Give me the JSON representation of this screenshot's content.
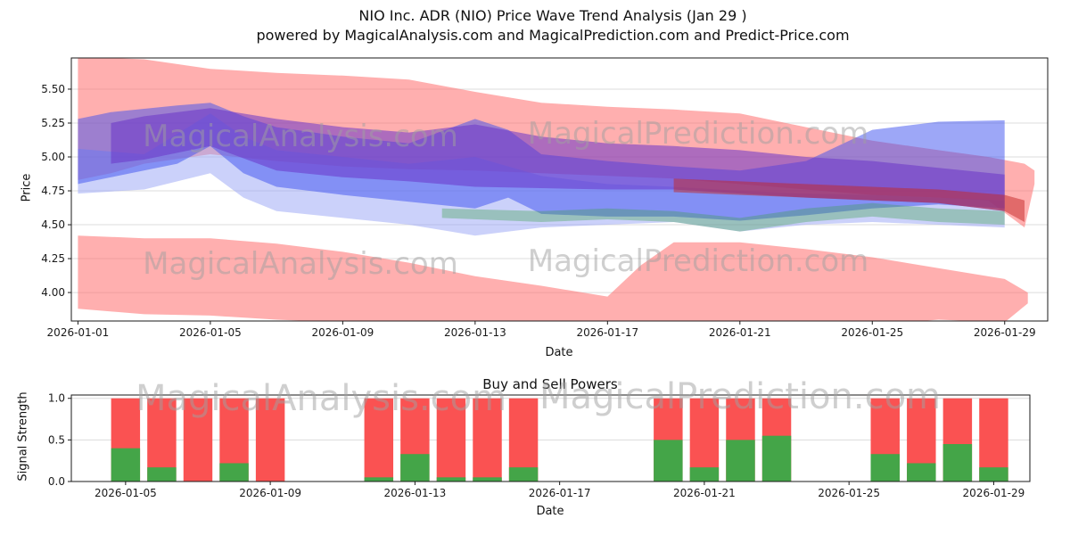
{
  "page": {
    "title_line1": "NIO Inc. ADR (NIO) Price Wave Trend Analysis (Jan 29 )",
    "title_line2": "powered by MagicalAnalysis.com and MagicalPrediction.com and Predict-Price.com"
  },
  "watermarks": {
    "analysis": "MagicalAnalysis.com",
    "prediction": "MagicalPrediction.com"
  },
  "chart_data": [
    {
      "type": "area",
      "title": "NIO Inc. ADR (NIO) Price Wave Trend Analysis (Jan 29 )",
      "xlabel": "Date",
      "ylabel": "Price",
      "xlim": [
        0.8,
        30.3
      ],
      "ylim": [
        3.79,
        5.73
      ],
      "x_tick_days": [
        1,
        5,
        9,
        13,
        17,
        21,
        25,
        29
      ],
      "x_tick_labels": [
        "2026-01-01",
        "2026-01-05",
        "2026-01-09",
        "2026-01-13",
        "2026-01-17",
        "2026-01-21",
        "2026-01-25",
        "2026-01-29"
      ],
      "y_ticks": [
        4.0,
        4.25,
        4.5,
        4.75,
        5.0,
        5.25,
        5.5
      ],
      "y_tick_labels": [
        "4.00",
        "4.25",
        "4.50",
        "4.75",
        "5.00",
        "5.25",
        "5.50"
      ],
      "grid": "horizontal",
      "legend": "none",
      "bands": [
        {
          "name": "upper-red-forecast",
          "color": "#ff6e6e",
          "opacity": 0.55,
          "days": [
            1,
            2,
            3,
            5,
            7,
            9,
            11,
            13,
            15,
            17,
            19,
            21,
            23,
            25,
            27,
            28.5,
            29.6,
            29.9
          ],
          "upper": [
            5.73,
            5.73,
            5.72,
            5.65,
            5.62,
            5.6,
            5.57,
            5.48,
            5.4,
            5.37,
            5.35,
            5.32,
            5.22,
            5.12,
            5.05,
            5.0,
            4.95,
            4.9
          ],
          "lower": [
            4.83,
            4.88,
            4.95,
            5.02,
            4.97,
            4.93,
            4.91,
            4.9,
            4.88,
            4.86,
            4.84,
            4.8,
            4.76,
            4.72,
            4.7,
            4.68,
            4.48,
            4.8
          ]
        },
        {
          "name": "lower-red-forecast",
          "color": "#ff6e6e",
          "opacity": 0.55,
          "days": [
            1,
            3,
            5,
            7,
            9,
            11,
            13,
            15,
            17,
            18,
            19,
            21,
            23,
            25,
            27,
            29,
            29.7
          ],
          "upper": [
            4.42,
            4.4,
            4.4,
            4.36,
            4.3,
            4.22,
            4.12,
            4.05,
            3.97,
            4.2,
            4.37,
            4.37,
            4.32,
            4.26,
            4.18,
            4.1,
            4.0
          ],
          "lower": [
            3.88,
            3.84,
            3.83,
            3.8,
            3.78,
            3.76,
            3.74,
            3.72,
            3.7,
            3.7,
            3.7,
            3.7,
            3.72,
            3.76,
            3.8,
            3.78,
            3.92
          ]
        },
        {
          "name": "light-blue-wave",
          "color": "#97a4f5",
          "opacity": 0.5,
          "days": [
            1,
            3,
            5,
            6,
            7,
            9,
            11,
            13,
            15,
            17,
            19,
            21,
            23,
            25,
            27,
            29
          ],
          "upper": [
            5.06,
            5.02,
            5.32,
            5.15,
            5.05,
            5.0,
            4.95,
            5.0,
            4.86,
            4.8,
            4.78,
            4.75,
            4.73,
            4.72,
            4.7,
            4.68
          ],
          "lower": [
            4.73,
            4.76,
            4.88,
            4.7,
            4.6,
            4.55,
            4.5,
            4.42,
            4.48,
            4.5,
            4.52,
            4.45,
            4.5,
            4.52,
            4.5,
            4.48
          ]
        },
        {
          "name": "blue-wave",
          "color": "#3c50f0",
          "opacity": 0.5,
          "days": [
            1,
            2,
            4,
            5,
            6,
            7,
            9,
            11,
            13,
            14,
            15,
            17,
            19,
            21,
            23,
            25,
            27,
            29
          ],
          "upper": [
            5.28,
            5.33,
            5.38,
            5.4,
            5.3,
            5.22,
            5.15,
            5.1,
            5.28,
            5.2,
            5.02,
            4.97,
            4.93,
            4.9,
            4.97,
            5.2,
            5.26,
            5.27
          ],
          "lower": [
            4.8,
            4.85,
            4.95,
            5.08,
            4.88,
            4.78,
            4.72,
            4.67,
            4.62,
            4.7,
            4.58,
            4.56,
            4.56,
            4.53,
            4.57,
            4.62,
            4.65,
            4.62
          ]
        },
        {
          "name": "purple-wave",
          "color": "#6a35c8",
          "opacity": 0.55,
          "days": [
            2,
            3,
            5,
            7,
            9,
            11,
            13,
            15,
            17,
            19,
            21,
            23,
            25,
            27,
            29
          ],
          "upper": [
            5.25,
            5.3,
            5.36,
            5.28,
            5.22,
            5.18,
            5.24,
            5.15,
            5.1,
            5.08,
            5.05,
            5.0,
            4.97,
            4.92,
            4.87
          ],
          "lower": [
            4.95,
            4.98,
            5.08,
            4.9,
            4.85,
            4.82,
            4.78,
            4.77,
            4.76,
            4.76,
            4.73,
            4.7,
            4.68,
            4.66,
            4.6
          ]
        },
        {
          "name": "green-wave",
          "color": "#3da04a",
          "opacity": 0.35,
          "days": [
            12,
            15,
            17,
            19,
            21,
            23,
            25,
            27,
            29
          ],
          "upper": [
            4.62,
            4.6,
            4.62,
            4.6,
            4.55,
            4.62,
            4.66,
            4.62,
            4.6
          ],
          "lower": [
            4.55,
            4.52,
            4.54,
            4.52,
            4.45,
            4.52,
            4.56,
            4.52,
            4.5
          ]
        },
        {
          "name": "red-trend-line",
          "color": "#c32626",
          "opacity": 0.5,
          "days": [
            19,
            21,
            23,
            25,
            27,
            29,
            29.6
          ],
          "upper": [
            4.84,
            4.82,
            4.8,
            4.78,
            4.76,
            4.72,
            4.68
          ],
          "lower": [
            4.74,
            4.72,
            4.7,
            4.68,
            4.66,
            4.6,
            4.52
          ]
        }
      ]
    },
    {
      "type": "bar",
      "title": "Buy and Sell Powers",
      "xlabel": "Date",
      "ylabel": "Signal Strength",
      "xlim": [
        3.5,
        30.0
      ],
      "ylim": [
        0,
        1.04
      ],
      "x_tick_days": [
        5,
        9,
        13,
        17,
        21,
        25,
        29
      ],
      "x_tick_labels": [
        "2026-01-05",
        "2026-01-09",
        "2026-01-13",
        "2026-01-17",
        "2026-01-21",
        "2026-01-25",
        "2026-01-29"
      ],
      "y_ticks": [
        0.0,
        0.5,
        1.0
      ],
      "y_tick_labels": [
        "0.0",
        "0.5",
        "1.0"
      ],
      "grid": "horizontal",
      "legend": "none",
      "bar_width_days": 0.8,
      "colors": {
        "sell": "#fa5252",
        "buy": "#44a548"
      },
      "bars": [
        {
          "date": "2026-01-05",
          "day": 5,
          "sell": 1.0,
          "buy": 0.4
        },
        {
          "date": "2026-01-06",
          "day": 6,
          "sell": 1.0,
          "buy": 0.17
        },
        {
          "date": "2026-01-07",
          "day": 7,
          "sell": 1.0,
          "buy": 0.0
        },
        {
          "date": "2026-01-08",
          "day": 8,
          "sell": 1.0,
          "buy": 0.22
        },
        {
          "date": "2026-01-09",
          "day": 9,
          "sell": 1.0,
          "buy": 0.0
        },
        {
          "date": "2026-01-12",
          "day": 12,
          "sell": 1.0,
          "buy": 0.05
        },
        {
          "date": "2026-01-13",
          "day": 13,
          "sell": 1.0,
          "buy": 0.33
        },
        {
          "date": "2026-01-14",
          "day": 14,
          "sell": 1.0,
          "buy": 0.05
        },
        {
          "date": "2026-01-15",
          "day": 15,
          "sell": 1.0,
          "buy": 0.05
        },
        {
          "date": "2026-01-16",
          "day": 16,
          "sell": 1.0,
          "buy": 0.17
        },
        {
          "date": "2026-01-20",
          "day": 20,
          "sell": 1.0,
          "buy": 0.5
        },
        {
          "date": "2026-01-21",
          "day": 21,
          "sell": 1.0,
          "buy": 0.17
        },
        {
          "date": "2026-01-22",
          "day": 22,
          "sell": 1.0,
          "buy": 0.5
        },
        {
          "date": "2026-01-23",
          "day": 23,
          "sell": 1.0,
          "buy": 0.55
        },
        {
          "date": "2026-01-26",
          "day": 26,
          "sell": 1.0,
          "buy": 0.33
        },
        {
          "date": "2026-01-27",
          "day": 27,
          "sell": 1.0,
          "buy": 0.22
        },
        {
          "date": "2026-01-28",
          "day": 28,
          "sell": 1.0,
          "buy": 0.45
        },
        {
          "date": "2026-01-29",
          "day": 29,
          "sell": 1.0,
          "buy": 0.17
        }
      ]
    }
  ]
}
